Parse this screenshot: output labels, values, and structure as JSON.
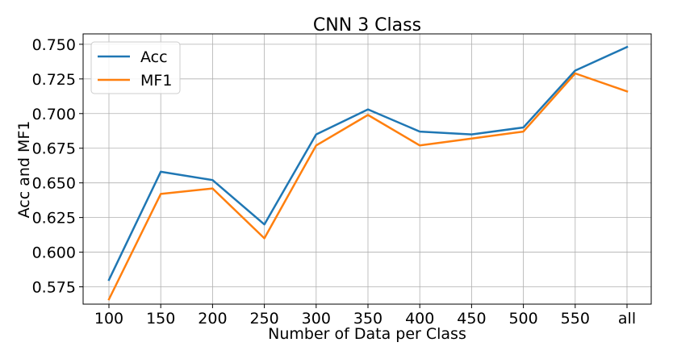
{
  "chart_data": {
    "type": "line",
    "title": "CNN 3 Class",
    "xlabel": "Number of Data per Class",
    "ylabel": "Acc and MF1",
    "categories": [
      "100",
      "150",
      "200",
      "250",
      "300",
      "350",
      "400",
      "450",
      "500",
      "550",
      "all"
    ],
    "ylim": [
      0.5625,
      0.7575
    ],
    "yticks": [
      "0.575",
      "0.600",
      "0.625",
      "0.650",
      "0.675",
      "0.700",
      "0.725",
      "0.750"
    ],
    "grid": true,
    "legend_position": "top-left",
    "series": [
      {
        "name": "Acc",
        "color": "#1f77b4",
        "values": [
          0.58,
          0.658,
          0.652,
          0.62,
          0.685,
          0.703,
          0.687,
          0.685,
          0.69,
          0.731,
          0.748
        ]
      },
      {
        "name": "MF1",
        "color": "#ff7f0e",
        "values": [
          0.566,
          0.642,
          0.646,
          0.61,
          0.677,
          0.699,
          0.677,
          0.682,
          0.687,
          0.729,
          0.716
        ]
      }
    ]
  }
}
